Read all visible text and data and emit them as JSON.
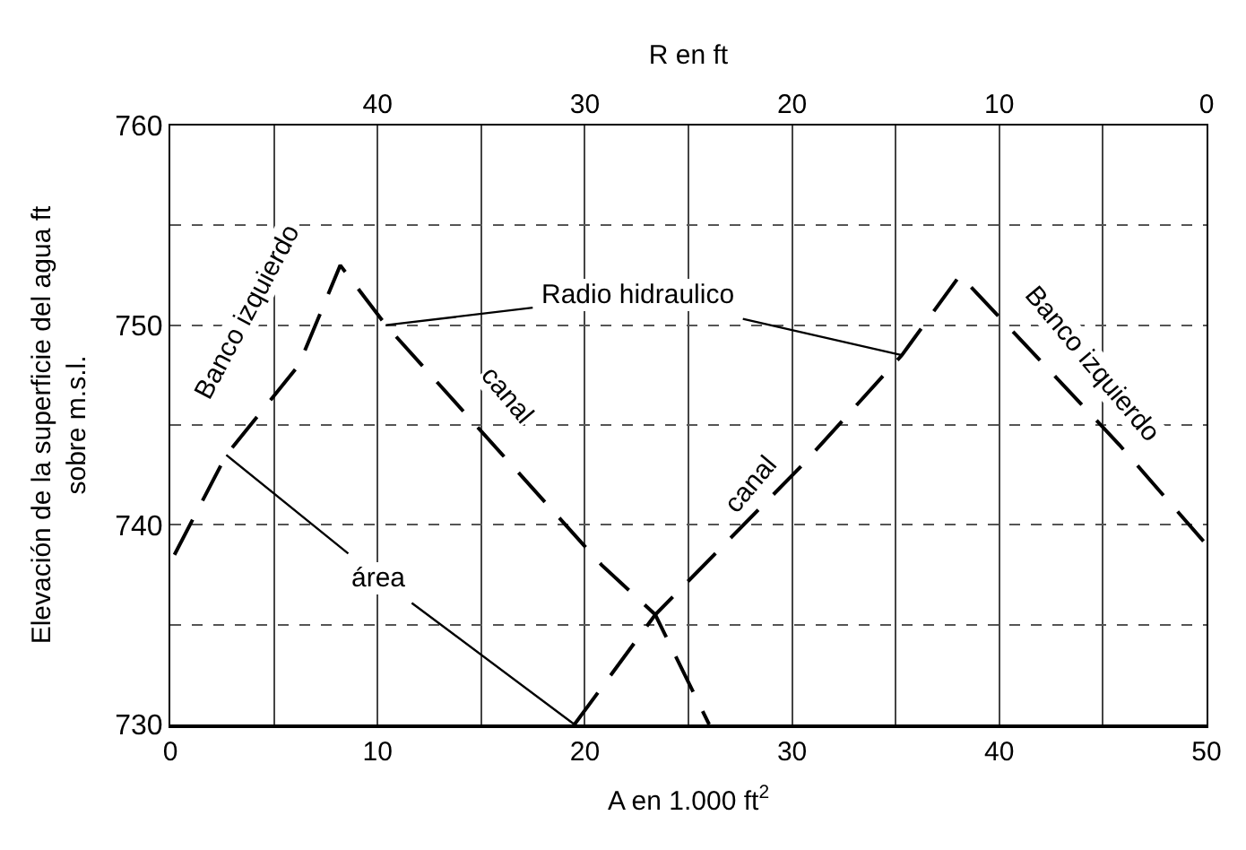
{
  "chart_data": {
    "type": "line",
    "xlabel": "A en 1.000 ft$^{2}$",
    "x2label": "R en ft",
    "ylabel": "Elevación de la superficie del agua ft\nsobre m.s.l.",
    "xlim": [
      0,
      50
    ],
    "xticks": [
      0,
      {
        "value": 5,
        "label": null
      },
      10,
      {
        "value": 15,
        "label": null
      },
      20,
      {
        "value": 25,
        "label": null
      },
      30,
      {
        "value": 35,
        "label": null
      },
      40,
      {
        "value": 45,
        "label": null
      },
      50
    ],
    "x2lim": [
      50,
      0
    ],
    "x2ticks": [
      40,
      30,
      20,
      10,
      0
    ],
    "ylim": [
      730,
      760
    ],
    "yticks": [
      730,
      {
        "value": 735,
        "label": null
      },
      740,
      {
        "value": 745,
        "label": null
      },
      750,
      {
        "value": 755,
        "label": null
      },
      760
    ],
    "grid": true,
    "marker": "none",
    "line_style": "dashed",
    "series": [
      {
        "color": "#000000",
        "axis": "x2",
        "x": [
          49.8,
          47.3,
          43.8,
          41.8,
          39.6,
          29.2,
          26.6,
          24
        ],
        "values": [
          738.5,
          743.5,
          748,
          753,
          750,
          738,
          735.5,
          730
        ]
      },
      {
        "color": "#000000",
        "x": [
          19.5,
          23.4,
          30.5,
          35.3,
          38.1,
          45.8,
          50
        ],
        "values": [
          730,
          735.5,
          743,
          748.5,
          752.5,
          744,
          739
        ]
      }
    ],
    "annotations": [
      "Banco izquierdo",
      "canal",
      {
        "text": "Radio hidraulico",
        "x": 35.3,
        "y": 748.5
      },
      {
        "text": "área",
        "x": 19.5,
        "y": 730
      },
      "canal",
      "Banco izquierdo"
    ]
  }
}
